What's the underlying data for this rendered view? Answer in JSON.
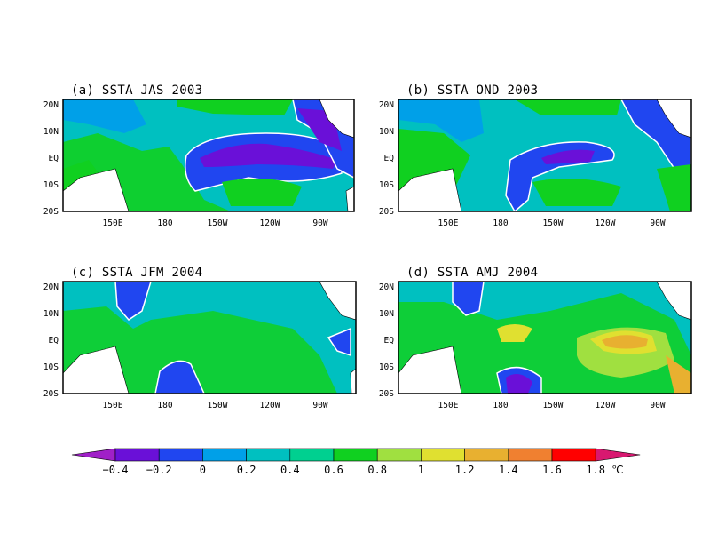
{
  "panels": [
    {
      "title": "(a) SSTA JAS 2003",
      "lat_labels": [
        "20N",
        "10N",
        "EQ",
        "10S",
        "20S"
      ],
      "lon_labels": [
        "150E",
        "180",
        "150W",
        "120W",
        "90W"
      ]
    },
    {
      "title": "(b) SSTA OND 2003",
      "lat_labels": [
        "20N",
        "10N",
        "EQ",
        "10S",
        "20S"
      ],
      "lon_labels": [
        "150E",
        "180",
        "150W",
        "120W",
        "90W"
      ]
    },
    {
      "title": "(c) SSTA JFM 2004",
      "lat_labels": [
        "20N",
        "10N",
        "EQ",
        "10S",
        "20S"
      ],
      "lon_labels": [
        "150E",
        "180",
        "150W",
        "120W",
        "90W"
      ]
    },
    {
      "title": "(d) SSTA AMJ 2004",
      "lat_labels": [
        "20N",
        "10N",
        "EQ",
        "10S",
        "20S"
      ],
      "lon_labels": [
        "150E",
        "180",
        "150W",
        "120W",
        "90W"
      ]
    }
  ],
  "colorbar": {
    "labels": [
      "-0.4",
      "-0.2",
      "0",
      "0.2",
      "0.4",
      "0.6",
      "0.8",
      "1",
      "1.2",
      "1.4",
      "1.6",
      "1.8"
    ],
    "unit": "℃",
    "colors": [
      "#a020c8",
      "#6a10d8",
      "#2046f0",
      "#00a0e8",
      "#00c0c0",
      "#00d090",
      "#10d020",
      "#a0e040",
      "#e0e030",
      "#e8b030",
      "#f08030",
      "#ff0000",
      "#d81870"
    ]
  }
}
